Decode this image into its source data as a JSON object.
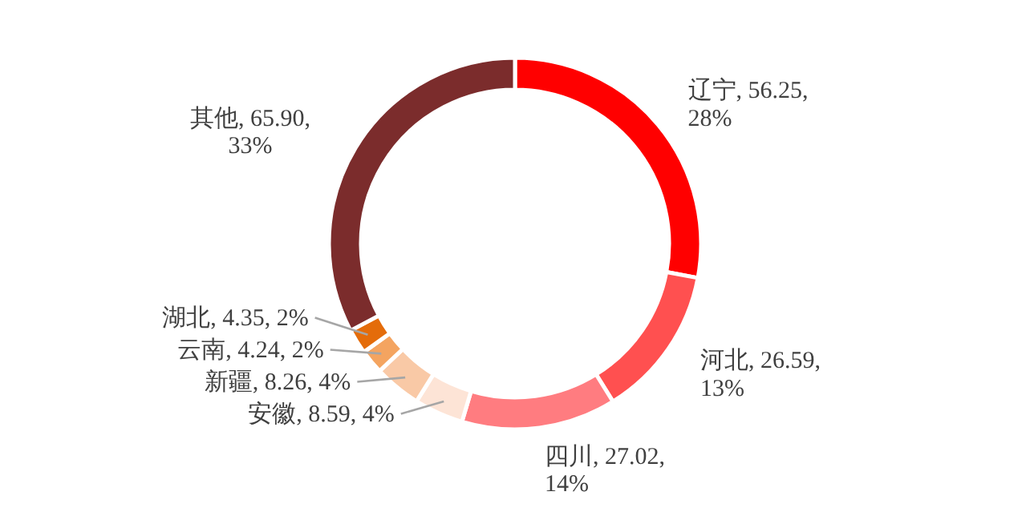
{
  "chart_data": {
    "type": "donut",
    "categories": [
      "辽宁",
      "河北",
      "四川",
      "安徽",
      "新疆",
      "云南",
      "湖北",
      "其他"
    ],
    "values": [
      56.25,
      26.59,
      27.02,
      8.59,
      8.26,
      4.24,
      4.35,
      65.9
    ],
    "value_labels": [
      "56.25, 28%",
      "26.59, 13%",
      "27.02, 14%",
      "8.59, 4%",
      "8.26, 4%",
      "4.24, 2%",
      "4.35, 2%",
      "65.90, 33%"
    ],
    "colors": [
      "#ff0000",
      "#ff5050",
      "#ff7c80",
      "#fde4d6",
      "#f9c9a6",
      "#f4a460",
      "#e46c0a",
      "#7b2c2c"
    ]
  }
}
